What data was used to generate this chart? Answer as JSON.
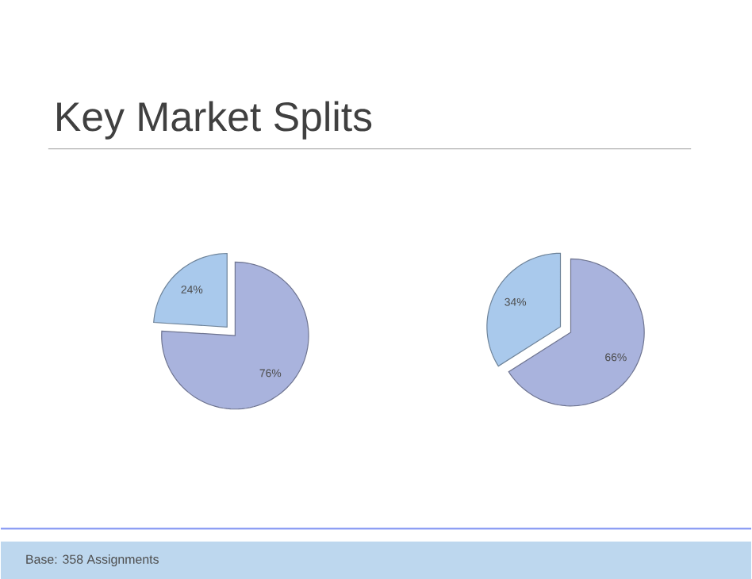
{
  "chart_data": [
    {
      "type": "pie",
      "title": "Key Market Splits",
      "categories": [
        null,
        null
      ],
      "values": [
        24,
        76
      ],
      "value_labels": [
        "24%",
        "76%"
      ],
      "colors": [
        "#a9c9ec",
        "#a9b3dd"
      ]
    },
    {
      "type": "pie",
      "categories": [
        null,
        null
      ],
      "values": [
        34,
        66
      ],
      "value_labels": [
        "34%",
        "66%"
      ],
      "colors": [
        "#a9c9ec",
        "#a9b3dd"
      ],
      "annotations": [
        "Base: 358 Assignments"
      ]
    }
  ]
}
